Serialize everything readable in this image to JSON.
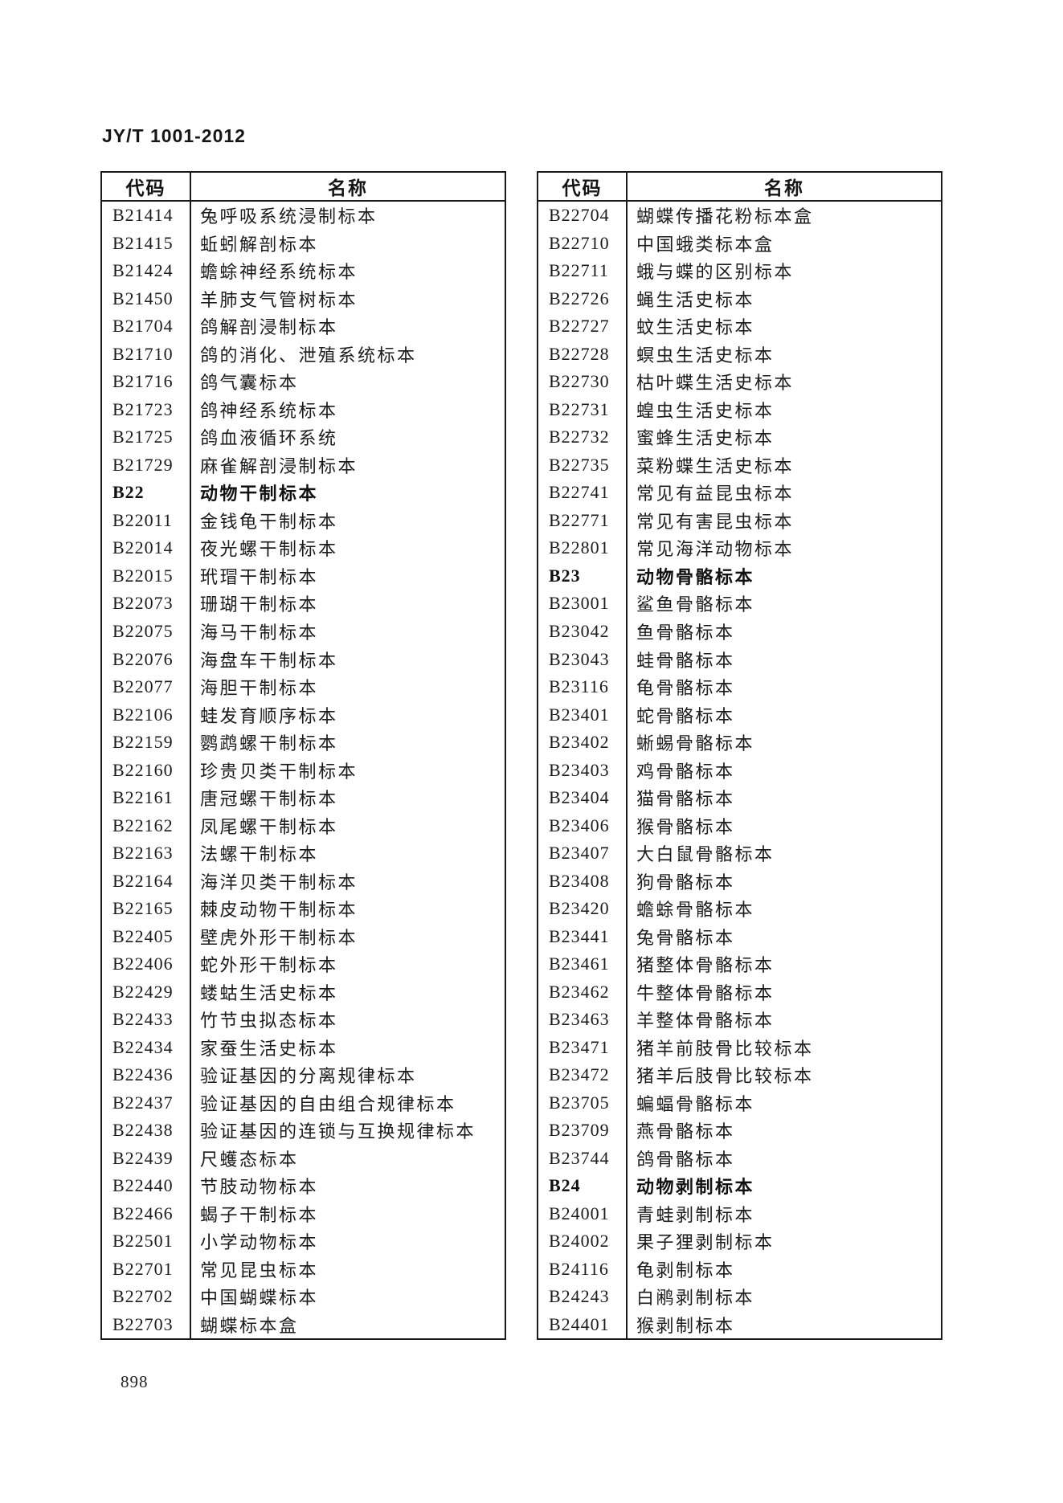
{
  "page": {
    "doc_number": "JY/T 1001-2012",
    "page_number": "898"
  },
  "table_headers": {
    "code": "代码",
    "name": "名称"
  },
  "left_table": {
    "rows": [
      {
        "code": "B21414",
        "name": "兔呼吸系统浸制标本",
        "bold": false
      },
      {
        "code": "B21415",
        "name": "蚯蚓解剖标本",
        "bold": false
      },
      {
        "code": "B21424",
        "name": "蟾蜍神经系统标本",
        "bold": false
      },
      {
        "code": "B21450",
        "name": "羊肺支气管树标本",
        "bold": false
      },
      {
        "code": "B21704",
        "name": "鸽解剖浸制标本",
        "bold": false
      },
      {
        "code": "B21710",
        "name": "鸽的消化、泄殖系统标本",
        "bold": false
      },
      {
        "code": "B21716",
        "name": "鸽气囊标本",
        "bold": false
      },
      {
        "code": "B21723",
        "name": "鸽神经系统标本",
        "bold": false
      },
      {
        "code": "B21725",
        "name": "鸽血液循环系统",
        "bold": false
      },
      {
        "code": "B21729",
        "name": "麻雀解剖浸制标本",
        "bold": false
      },
      {
        "code": "B22",
        "name": "动物干制标本",
        "bold": true
      },
      {
        "code": "B22011",
        "name": "金钱龟干制标本",
        "bold": false
      },
      {
        "code": "B22014",
        "name": "夜光螺干制标本",
        "bold": false
      },
      {
        "code": "B22015",
        "name": "玳瑁干制标本",
        "bold": false
      },
      {
        "code": "B22073",
        "name": "珊瑚干制标本",
        "bold": false
      },
      {
        "code": "B22075",
        "name": "海马干制标本",
        "bold": false
      },
      {
        "code": "B22076",
        "name": "海盘车干制标本",
        "bold": false
      },
      {
        "code": "B22077",
        "name": "海胆干制标本",
        "bold": false
      },
      {
        "code": "B22106",
        "name": "蛙发育顺序标本",
        "bold": false
      },
      {
        "code": "B22159",
        "name": "鹦鹉螺干制标本",
        "bold": false
      },
      {
        "code": "B22160",
        "name": "珍贵贝类干制标本",
        "bold": false
      },
      {
        "code": "B22161",
        "name": "唐冠螺干制标本",
        "bold": false
      },
      {
        "code": "B22162",
        "name": "凤尾螺干制标本",
        "bold": false
      },
      {
        "code": "B22163",
        "name": "法螺干制标本",
        "bold": false
      },
      {
        "code": "B22164",
        "name": "海洋贝类干制标本",
        "bold": false
      },
      {
        "code": "B22165",
        "name": "棘皮动物干制标本",
        "bold": false
      },
      {
        "code": "B22405",
        "name": "壁虎外形干制标本",
        "bold": false
      },
      {
        "code": "B22406",
        "name": "蛇外形干制标本",
        "bold": false
      },
      {
        "code": "B22429",
        "name": "蝼蛄生活史标本",
        "bold": false
      },
      {
        "code": "B22433",
        "name": "竹节虫拟态标本",
        "bold": false
      },
      {
        "code": "B22434",
        "name": "家蚕生活史标本",
        "bold": false
      },
      {
        "code": "B22436",
        "name": "验证基因的分离规律标本",
        "bold": false
      },
      {
        "code": "B22437",
        "name": "验证基因的自由组合规律标本",
        "bold": false
      },
      {
        "code": "B22438",
        "name": "验证基因的连锁与互换规律标本",
        "bold": false
      },
      {
        "code": "B22439",
        "name": "尺蠖态标本",
        "bold": false
      },
      {
        "code": "B22440",
        "name": "节肢动物标本",
        "bold": false
      },
      {
        "code": "B22466",
        "name": "蝎子干制标本",
        "bold": false
      },
      {
        "code": "B22501",
        "name": "小学动物标本",
        "bold": false
      },
      {
        "code": "B22701",
        "name": "常见昆虫标本",
        "bold": false
      },
      {
        "code": "B22702",
        "name": "中国蝴蝶标本",
        "bold": false
      },
      {
        "code": "B22703",
        "name": "蝴蝶标本盒",
        "bold": false
      }
    ]
  },
  "right_table": {
    "rows": [
      {
        "code": "B22704",
        "name": "蝴蝶传播花粉标本盒",
        "bold": false
      },
      {
        "code": "B22710",
        "name": "中国蛾类标本盒",
        "bold": false
      },
      {
        "code": "B22711",
        "name": "蛾与蝶的区别标本",
        "bold": false
      },
      {
        "code": "B22726",
        "name": "蝇生活史标本",
        "bold": false
      },
      {
        "code": "B22727",
        "name": "蚊生活史标本",
        "bold": false
      },
      {
        "code": "B22728",
        "name": "螟虫生活史标本",
        "bold": false
      },
      {
        "code": "B22730",
        "name": "枯叶蝶生活史标本",
        "bold": false
      },
      {
        "code": "B22731",
        "name": "蝗虫生活史标本",
        "bold": false
      },
      {
        "code": "B22732",
        "name": "蜜蜂生活史标本",
        "bold": false
      },
      {
        "code": "B22735",
        "name": "菜粉蝶生活史标本",
        "bold": false
      },
      {
        "code": "B22741",
        "name": "常见有益昆虫标本",
        "bold": false
      },
      {
        "code": "B22771",
        "name": "常见有害昆虫标本",
        "bold": false
      },
      {
        "code": "B22801",
        "name": "常见海洋动物标本",
        "bold": false
      },
      {
        "code": "B23",
        "name": "动物骨骼标本",
        "bold": true
      },
      {
        "code": "B23001",
        "name": "鲨鱼骨骼标本",
        "bold": false
      },
      {
        "code": "B23042",
        "name": "鱼骨骼标本",
        "bold": false
      },
      {
        "code": "B23043",
        "name": "蛙骨骼标本",
        "bold": false
      },
      {
        "code": "B23116",
        "name": "龟骨骼标本",
        "bold": false
      },
      {
        "code": "B23401",
        "name": "蛇骨骼标本",
        "bold": false
      },
      {
        "code": "B23402",
        "name": "蜥蜴骨骼标本",
        "bold": false
      },
      {
        "code": "B23403",
        "name": "鸡骨骼标本",
        "bold": false
      },
      {
        "code": "B23404",
        "name": "猫骨骼标本",
        "bold": false
      },
      {
        "code": "B23406",
        "name": "猴骨骼标本",
        "bold": false
      },
      {
        "code": "B23407",
        "name": "大白鼠骨骼标本",
        "bold": false
      },
      {
        "code": "B23408",
        "name": "狗骨骼标本",
        "bold": false
      },
      {
        "code": "B23420",
        "name": "蟾蜍骨骼标本",
        "bold": false
      },
      {
        "code": "B23441",
        "name": "兔骨骼标本",
        "bold": false
      },
      {
        "code": "B23461",
        "name": "猪整体骨骼标本",
        "bold": false
      },
      {
        "code": "B23462",
        "name": "牛整体骨骼标本",
        "bold": false
      },
      {
        "code": "B23463",
        "name": "羊整体骨骼标本",
        "bold": false
      },
      {
        "code": "B23471",
        "name": "猪羊前肢骨比较标本",
        "bold": false
      },
      {
        "code": "B23472",
        "name": "猪羊后肢骨比较标本",
        "bold": false
      },
      {
        "code": "B23705",
        "name": "蝙蝠骨骼标本",
        "bold": false
      },
      {
        "code": "B23709",
        "name": "燕骨骼标本",
        "bold": false
      },
      {
        "code": "B23744",
        "name": "鸽骨骼标本",
        "bold": false
      },
      {
        "code": "B24",
        "name": "动物剥制标本",
        "bold": true
      },
      {
        "code": "B24001",
        "name": "青蛙剥制标本",
        "bold": false
      },
      {
        "code": "B24002",
        "name": "果子狸剥制标本",
        "bold": false
      },
      {
        "code": "B24116",
        "name": "龟剥制标本",
        "bold": false
      },
      {
        "code": "B24243",
        "name": "白鹇剥制标本",
        "bold": false
      },
      {
        "code": "B24401",
        "name": "猴剥制标本",
        "bold": false
      }
    ]
  }
}
